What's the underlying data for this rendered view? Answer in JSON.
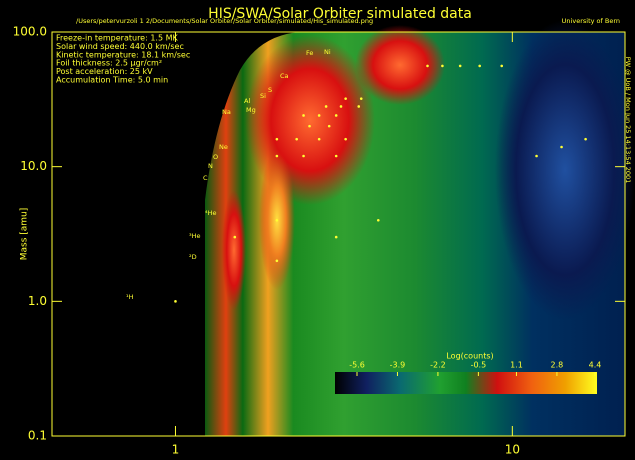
{
  "chart_data": {
    "type": "scatter",
    "title": "HIS/SWA/Solar Orbiter simulated data",
    "file_path": "/Users/petervurzoli 1 2/Documents/Solar Orbiter/Solar Orbiter/simulated/His_simulated.png",
    "institution": "University of Bern",
    "timestamp": "PW @ UoB / Mon Jun 25 14:13:54 2001",
    "parameters": [
      "Freeze-in temperature: 1.5 MK",
      "Solar wind speed: 440.0 km/sec",
      "Kinetic temperature: 18.1 km/sec",
      "Foil thickness: 2.5 µgr/cm²",
      "Post acceleration: 25 kV",
      "Accumulation Time: 5.0 min"
    ],
    "y_label": "Mass [amu]",
    "x": [
      1,
      1.5,
      2,
      2,
      3,
      4,
      2,
      2.4,
      3,
      2,
      2.29,
      2.67,
      3.2,
      2.5,
      2.86,
      2.4,
      2.67,
      3,
      2.8,
      3.1,
      3.5,
      3.2,
      3.56,
      5.6,
      6.2,
      7,
      8,
      9.3,
      11.8,
      14,
      16.5
    ],
    "values": [
      1,
      3,
      4,
      2,
      3,
      4,
      12,
      12,
      12,
      16,
      16,
      16,
      16,
      20,
      20,
      24,
      24,
      24,
      28,
      28,
      28,
      32,
      32,
      56,
      56,
      56,
      56,
      56,
      12,
      14,
      16
    ],
    "color": "#ffff33",
    "xlim": [
      0.43,
      21.6
    ],
    "ylim": [
      0.1,
      100
    ],
    "xticks": [
      1,
      10
    ],
    "yticks": [
      0.1,
      {
        "value": 1,
        "label": "1.0"
      },
      {
        "value": 10,
        "label": "10.0"
      },
      {
        "value": 100,
        "label": "100.0"
      }
    ],
    "log_x": true,
    "log_y": true,
    "ion_labels": [
      "¹H",
      "²D",
      "³He",
      "⁴He",
      "C",
      "N",
      "O",
      "Ne",
      "Na",
      "Mg",
      "Al",
      "Si",
      "S",
      "Ca",
      "Fe",
      "Ni"
    ],
    "colorbar": {
      "title": "Log(counts)",
      "ticks": [
        -5.6,
        -3.9,
        -2.2,
        -0.5,
        1.1,
        2.8,
        4.4
      ]
    }
  }
}
